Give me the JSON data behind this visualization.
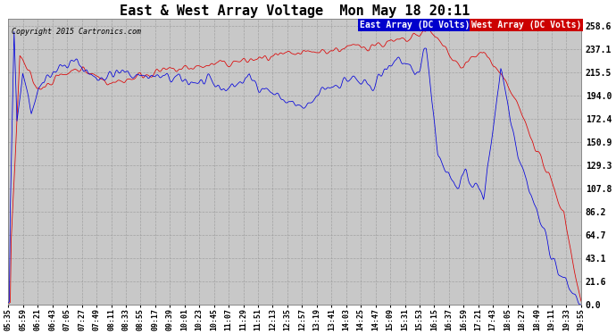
{
  "title": "East & West Array Voltage  Mon May 18 20:11",
  "copyright": "Copyright 2015 Cartronics.com",
  "east_label": "East Array (DC Volts)",
  "west_label": "West Array (DC Volts)",
  "east_color": "#0000dd",
  "west_color": "#dd0000",
  "legend_east_bg": "#0000cc",
  "legend_west_bg": "#cc0000",
  "yticks": [
    0.0,
    21.6,
    43.1,
    64.7,
    86.2,
    107.8,
    129.3,
    150.9,
    172.4,
    194.0,
    215.5,
    237.1,
    258.6
  ],
  "ylim": [
    0.0,
    258.6
  ],
  "background_color": "#ffffff",
  "plot_bg_color": "#c8c8c8",
  "grid_color": "#aaaaaa",
  "title_fontsize": 11,
  "xtick_labels": [
    "05:35",
    "05:59",
    "06:21",
    "06:43",
    "07:05",
    "07:27",
    "07:49",
    "08:11",
    "08:33",
    "08:55",
    "09:17",
    "09:39",
    "10:01",
    "10:23",
    "10:45",
    "11:07",
    "11:29",
    "11:51",
    "12:13",
    "12:35",
    "12:57",
    "13:19",
    "13:41",
    "14:03",
    "14:25",
    "14:47",
    "15:09",
    "15:31",
    "15:53",
    "16:15",
    "16:37",
    "16:59",
    "17:21",
    "17:43",
    "18:05",
    "18:27",
    "18:49",
    "19:11",
    "19:33",
    "19:55"
  ]
}
